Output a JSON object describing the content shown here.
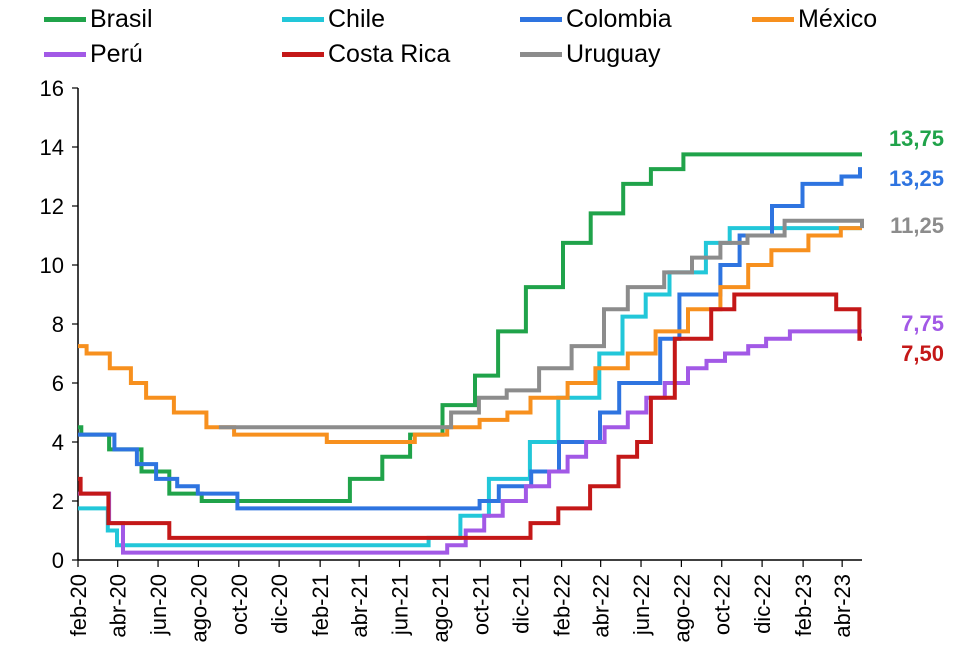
{
  "chart_data": {
    "type": "line",
    "ylim": [
      0,
      16
    ],
    "yticks": [
      "0",
      "2",
      "4",
      "6",
      "8",
      "10",
      "12",
      "14",
      "16"
    ],
    "xticks": [
      {
        "date": "2020-02",
        "label": "feb-20"
      },
      {
        "date": "2020-04",
        "label": "abr-20"
      },
      {
        "date": "2020-06",
        "label": "jun-20"
      },
      {
        "date": "2020-08",
        "label": "ago-20"
      },
      {
        "date": "2020-10",
        "label": "oct-20"
      },
      {
        "date": "2020-12",
        "label": "dic-20"
      },
      {
        "date": "2021-02",
        "label": "feb-21"
      },
      {
        "date": "2021-04",
        "label": "abr-21"
      },
      {
        "date": "2021-06",
        "label": "jun-21"
      },
      {
        "date": "2021-08",
        "label": "ago-21"
      },
      {
        "date": "2021-10",
        "label": "oct-21"
      },
      {
        "date": "2021-12",
        "label": "dic-21"
      },
      {
        "date": "2022-02",
        "label": "feb-22"
      },
      {
        "date": "2022-04",
        "label": "abr-22"
      },
      {
        "date": "2022-06",
        "label": "jun-22"
      },
      {
        "date": "2022-08",
        "label": "ago-22"
      },
      {
        "date": "2022-10",
        "label": "oct-22"
      },
      {
        "date": "2022-12",
        "label": "dic-22"
      },
      {
        "date": "2023-02",
        "label": "feb-23"
      },
      {
        "date": "2023-04",
        "label": "abr-23"
      }
    ],
    "legend_position": "top",
    "grid": false,
    "series": [
      {
        "name": "Brasil",
        "color": "#20a34a",
        "end_label": "13,75",
        "steps": [
          [
            "2020-02-01",
            4.5
          ],
          [
            "2020-02-06",
            4.25
          ],
          [
            "2020-03-19",
            3.75
          ],
          [
            "2020-05-07",
            3.0
          ],
          [
            "2020-06-18",
            2.25
          ],
          [
            "2020-08-06",
            2.0
          ],
          [
            "2021-03-18",
            2.75
          ],
          [
            "2021-05-06",
            3.5
          ],
          [
            "2021-06-17",
            4.25
          ],
          [
            "2021-08-05",
            5.25
          ],
          [
            "2021-09-23",
            6.25
          ],
          [
            "2021-10-28",
            7.75
          ],
          [
            "2021-12-09",
            9.25
          ],
          [
            "2022-02-03",
            10.75
          ],
          [
            "2022-03-17",
            11.75
          ],
          [
            "2022-05-05",
            12.75
          ],
          [
            "2022-06-16",
            13.25
          ],
          [
            "2022-08-04",
            13.75
          ],
          [
            "2023-05-01",
            13.75
          ]
        ]
      },
      {
        "name": "Chile",
        "color": "#22c7d9",
        "end_label": "",
        "steps": [
          [
            "2020-02-01",
            1.75
          ],
          [
            "2020-03-17",
            1.0
          ],
          [
            "2020-03-31",
            0.5
          ],
          [
            "2021-07-15",
            0.75
          ],
          [
            "2021-09-01",
            1.5
          ],
          [
            "2021-10-14",
            2.75
          ],
          [
            "2021-12-15",
            4.0
          ],
          [
            "2022-01-27",
            5.5
          ],
          [
            "2022-03-30",
            7.0
          ],
          [
            "2022-05-04",
            8.25
          ],
          [
            "2022-06-08",
            9.0
          ],
          [
            "2022-07-14",
            9.75
          ],
          [
            "2022-09-07",
            10.75
          ],
          [
            "2022-10-13",
            11.25
          ],
          [
            "2023-05-01",
            11.25
          ]
        ]
      },
      {
        "name": "Colombia",
        "color": "#2e74e0",
        "end_label": "13,25",
        "steps": [
          [
            "2020-02-01",
            4.25
          ],
          [
            "2020-03-27",
            3.75
          ],
          [
            "2020-04-30",
            3.25
          ],
          [
            "2020-05-29",
            2.75
          ],
          [
            "2020-06-30",
            2.5
          ],
          [
            "2020-07-31",
            2.25
          ],
          [
            "2020-09-29",
            1.75
          ],
          [
            "2021-09-30",
            2.0
          ],
          [
            "2021-10-29",
            2.5
          ],
          [
            "2021-12-17",
            3.0
          ],
          [
            "2022-01-28",
            4.0
          ],
          [
            "2022-03-31",
            5.0
          ],
          [
            "2022-04-29",
            6.0
          ],
          [
            "2022-06-30",
            7.5
          ],
          [
            "2022-07-29",
            9.0
          ],
          [
            "2022-09-29",
            10.0
          ],
          [
            "2022-10-28",
            11.0
          ],
          [
            "2022-12-16",
            12.0
          ],
          [
            "2023-01-31",
            12.75
          ],
          [
            "2023-03-31",
            13.0
          ],
          [
            "2023-04-28",
            13.25
          ],
          [
            "2023-05-01",
            13.25
          ]
        ]
      },
      {
        "name": "México",
        "color": "#f7901e",
        "end_label": "",
        "steps": [
          [
            "2020-02-01",
            7.25
          ],
          [
            "2020-02-14",
            7.0
          ],
          [
            "2020-03-20",
            6.5
          ],
          [
            "2020-04-21",
            6.0
          ],
          [
            "2020-05-14",
            5.5
          ],
          [
            "2020-06-25",
            5.0
          ],
          [
            "2020-08-13",
            4.5
          ],
          [
            "2020-09-24",
            4.25
          ],
          [
            "2021-02-11",
            4.0
          ],
          [
            "2021-06-24",
            4.25
          ],
          [
            "2021-08-12",
            4.5
          ],
          [
            "2021-09-30",
            4.75
          ],
          [
            "2021-11-11",
            5.0
          ],
          [
            "2021-12-16",
            5.5
          ],
          [
            "2022-02-10",
            6.0
          ],
          [
            "2022-03-24",
            6.5
          ],
          [
            "2022-05-12",
            7.0
          ],
          [
            "2022-06-23",
            7.75
          ],
          [
            "2022-08-11",
            8.5
          ],
          [
            "2022-09-29",
            9.25
          ],
          [
            "2022-11-10",
            10.0
          ],
          [
            "2022-12-15",
            10.5
          ],
          [
            "2023-02-09",
            11.0
          ],
          [
            "2023-03-30",
            11.25
          ],
          [
            "2023-05-01",
            11.25
          ]
        ]
      },
      {
        "name": "Perú",
        "color": "#a259e6",
        "end_label": "7,75",
        "steps": [
          [
            "2020-02-01",
            2.25
          ],
          [
            "2020-03-19",
            1.25
          ],
          [
            "2020-04-09",
            0.25
          ],
          [
            "2021-08-12",
            0.5
          ],
          [
            "2021-09-09",
            1.0
          ],
          [
            "2021-10-07",
            1.5
          ],
          [
            "2021-11-04",
            2.0
          ],
          [
            "2021-12-09",
            2.5
          ],
          [
            "2022-01-13",
            3.0
          ],
          [
            "2022-02-10",
            3.5
          ],
          [
            "2022-03-10",
            4.0
          ],
          [
            "2022-04-07",
            4.5
          ],
          [
            "2022-05-12",
            5.0
          ],
          [
            "2022-06-09",
            5.5
          ],
          [
            "2022-07-07",
            6.0
          ],
          [
            "2022-08-11",
            6.5
          ],
          [
            "2022-09-08",
            6.75
          ],
          [
            "2022-10-06",
            7.0
          ],
          [
            "2022-11-10",
            7.25
          ],
          [
            "2022-12-07",
            7.5
          ],
          [
            "2023-01-12",
            7.75
          ],
          [
            "2023-05-01",
            7.75
          ]
        ]
      },
      {
        "name": "Costa Rica",
        "color": "#c41818",
        "end_label": "7,50",
        "steps": [
          [
            "2020-02-01",
            2.75
          ],
          [
            "2020-02-05",
            2.25
          ],
          [
            "2020-03-18",
            1.25
          ],
          [
            "2020-06-18",
            0.75
          ],
          [
            "2021-12-16",
            1.25
          ],
          [
            "2022-01-27",
            1.75
          ],
          [
            "2022-03-16",
            2.5
          ],
          [
            "2022-04-28",
            3.5
          ],
          [
            "2022-05-26",
            4.0
          ],
          [
            "2022-06-16",
            5.5
          ],
          [
            "2022-07-22",
            7.5
          ],
          [
            "2022-09-15",
            8.5
          ],
          [
            "2022-10-20",
            9.0
          ],
          [
            "2023-03-23",
            8.5
          ],
          [
            "2023-04-27",
            7.5
          ],
          [
            "2023-05-01",
            7.5
          ]
        ]
      },
      {
        "name": "Uruguay",
        "color": "#8c8c8c",
        "end_label": "11,25",
        "steps": [
          [
            "2020-09-01",
            4.5
          ],
          [
            "2021-08-18",
            5.0
          ],
          [
            "2021-09-29",
            5.5
          ],
          [
            "2021-11-10",
            5.75
          ],
          [
            "2021-12-29",
            6.5
          ],
          [
            "2022-02-16",
            7.25
          ],
          [
            "2022-04-06",
            8.5
          ],
          [
            "2022-05-12",
            9.25
          ],
          [
            "2022-07-06",
            9.75
          ],
          [
            "2022-08-17",
            10.25
          ],
          [
            "2022-09-29",
            10.75
          ],
          [
            "2022-11-09",
            11.0
          ],
          [
            "2023-01-04",
            11.5
          ],
          [
            "2023-05-01",
            11.25
          ]
        ]
      }
    ]
  }
}
